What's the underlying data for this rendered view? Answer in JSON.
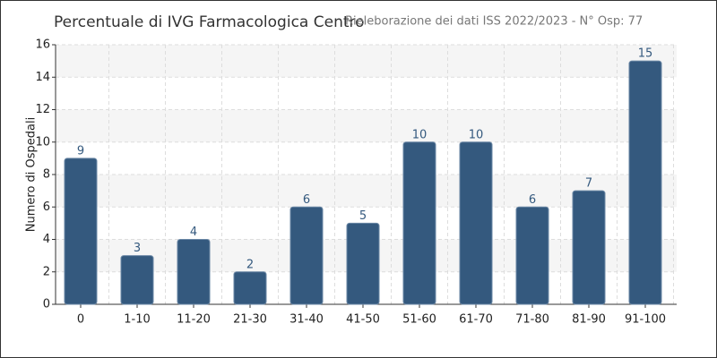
{
  "chart_data": {
    "type": "bar",
    "title": "Percentuale di IVG Farmacologica Centro",
    "subtitle": "Rieleborazione dei dati ISS 2022/2023 - N° Osp: 77",
    "y_label": "Numero di Ospedali",
    "categories": [
      "0",
      "1-10",
      "11-20",
      "21-30",
      "31-40",
      "41-50",
      "51-60",
      "61-70",
      "71-80",
      "81-90",
      "91-100"
    ],
    "values": [
      9,
      3,
      4,
      2,
      6,
      5,
      10,
      10,
      6,
      7,
      15
    ],
    "color": "#34597e",
    "ylim": [
      0,
      16
    ],
    "yticks": [
      0,
      2,
      4,
      6,
      8,
      10,
      12,
      14,
      16
    ],
    "grid": true
  }
}
